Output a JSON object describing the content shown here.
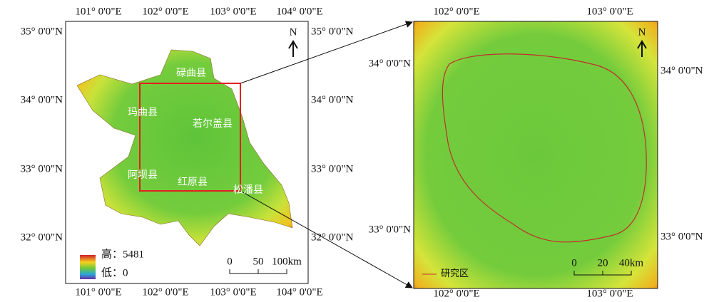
{
  "left_map": {
    "lon_labels": [
      "101° 0'0\"E",
      "102° 0'0\"E",
      "103° 0'0\"E",
      "104° 0'0\"E"
    ],
    "lat_labels": [
      "35° 0'0\"N",
      "34° 0'0\"N",
      "33° 0'0\"N",
      "32° 0'0\"N"
    ],
    "counties": [
      "碌曲县",
      "玛曲县",
      "若尔盖县",
      "阿坝县",
      "红原县",
      "松潘县"
    ],
    "legend": {
      "high": "高：5481",
      "low": "低：0"
    },
    "scale": [
      "0",
      "50",
      "100km"
    ],
    "north": "N"
  },
  "right_map": {
    "lon_labels": [
      "102° 0'0\"E",
      "103° 0'0\"E"
    ],
    "lat_labels": [
      "34° 0'0\"N",
      "33° 0'0\"N"
    ],
    "scale": [
      "0",
      "20",
      "40km"
    ],
    "legend": "研究区",
    "north": "N"
  }
}
